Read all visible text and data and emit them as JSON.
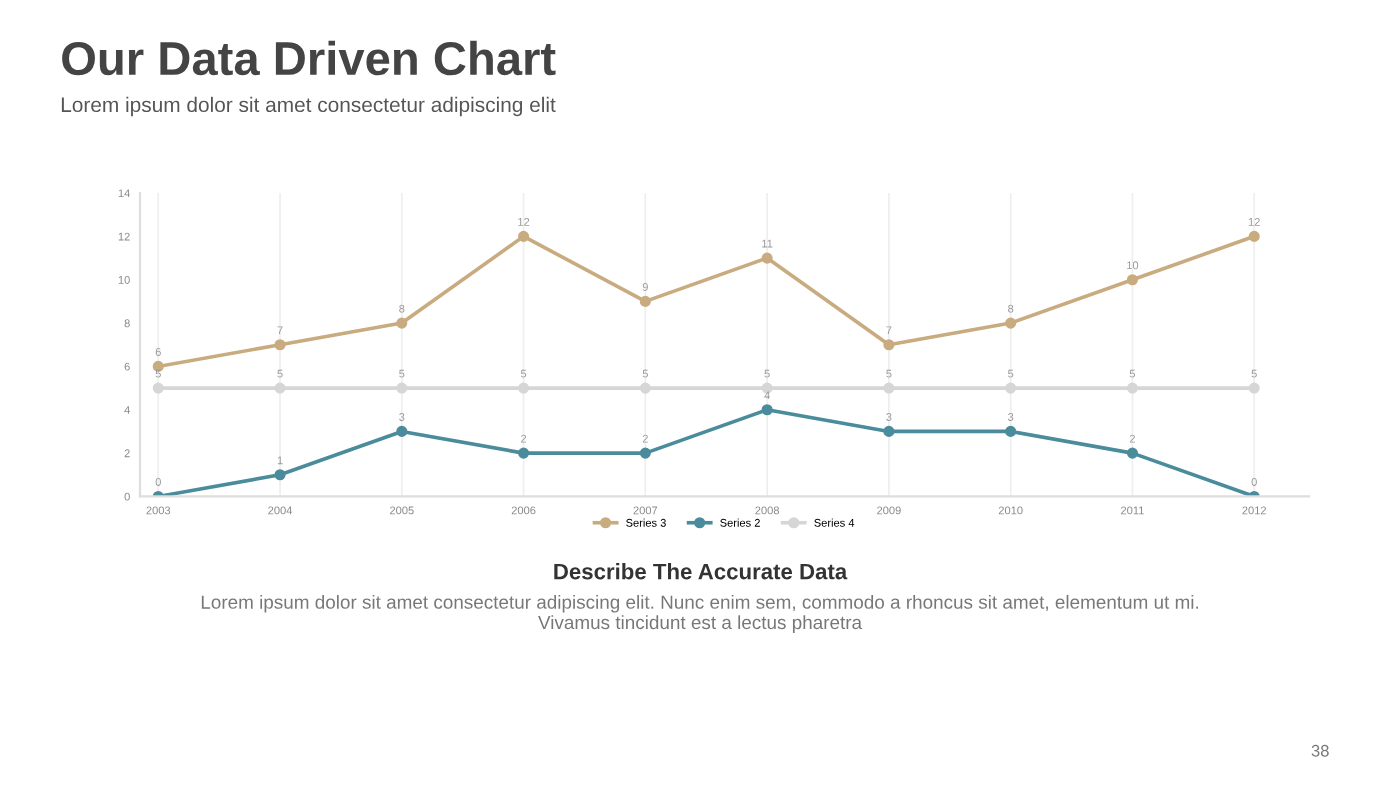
{
  "chart_data": {
    "type": "line",
    "title": "Our Data Driven Chart",
    "subtitle": "Lorem ipsum dolor sit amet consectetur adipiscing elit",
    "categories": [
      "2003",
      "2004",
      "2005",
      "2006",
      "2007",
      "2008",
      "2009",
      "2010",
      "2011",
      "2012"
    ],
    "series": [
      {
        "name": "Series 3",
        "color": "#c9ab80",
        "values": [
          6,
          7,
          8,
          12,
          9,
          11,
          7,
          8,
          10,
          12
        ]
      },
      {
        "name": "Series 2",
        "color": "#4a8c9c",
        "values": [
          0,
          1,
          3,
          2,
          2,
          4,
          3,
          3,
          2,
          0
        ]
      },
      {
        "name": "Series 4",
        "color": "#d6d6d6",
        "values": [
          5,
          5,
          5,
          5,
          5,
          5,
          5,
          5,
          5,
          5
        ]
      }
    ],
    "ylim": [
      0,
      14
    ],
    "yticks": [
      0,
      2,
      4,
      6,
      8,
      10,
      12,
      14
    ],
    "grid": "x",
    "legend": "bottom",
    "marker": "circle",
    "line_style": "solid",
    "data_labels": true,
    "annotations": [
      "Describe The Accurate Data",
      "Lorem ipsum dolor sit amet consectetur adipiscing elit. Nunc enim sem, commodo a rhoncus sit amet, elementum ut mi. Vivamus tincidunt est a lectus pharetra",
      "38"
    ]
  }
}
